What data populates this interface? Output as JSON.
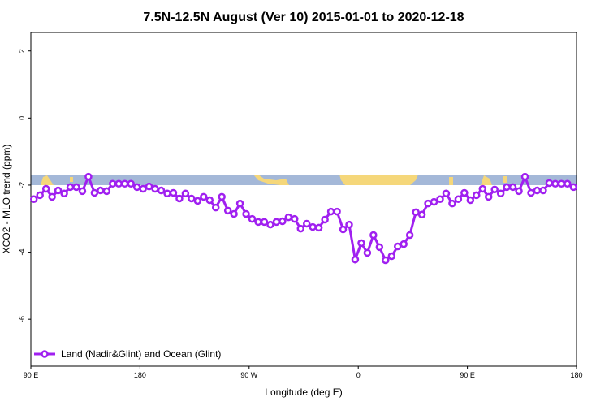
{
  "chart_data": {
    "type": "line",
    "title": "7.5N-12.5N August (Ver 10)   2015-01-01 to 2020-12-18",
    "x_label": "Longitude (deg E)",
    "y_label": "XCO2 - MLO trend (ppm)",
    "xlim": [
      90,
      540
    ],
    "xticks": [
      {
        "value": 90,
        "label": "90 E"
      },
      {
        "value": 180,
        "label": "180"
      },
      {
        "value": 270,
        "label": "90 W"
      },
      {
        "value": 360,
        "label": "0"
      },
      {
        "value": 450,
        "label": "90 E"
      },
      {
        "value": 540,
        "label": "180"
      }
    ],
    "ylim": [
      -7.4,
      2.55
    ],
    "yticks": [
      2,
      0,
      -2,
      -4,
      -6
    ],
    "x": [
      92.5,
      97.5,
      102.5,
      107.5,
      112.5,
      117.5,
      122.5,
      127.5,
      132.5,
      137.5,
      142.5,
      147.5,
      152.5,
      157.5,
      162.5,
      167.5,
      172.5,
      177.5,
      182.5,
      187.5,
      192.5,
      197.5,
      202.5,
      207.5,
      212.5,
      217.5,
      222.5,
      227.5,
      232.5,
      237.5,
      242.5,
      247.5,
      252.5,
      257.5,
      262.5,
      267.5,
      272.5,
      277.5,
      282.5,
      287.5,
      292.5,
      297.5,
      302.5,
      307.5,
      312.5,
      317.5,
      322.5,
      327.5,
      332.5,
      337.5,
      342.5,
      347.5,
      352.5,
      357.5,
      362.5,
      367.5,
      372.5,
      377.5,
      382.5,
      387.5,
      392.5,
      397.5,
      402.5,
      407.5,
      412.5,
      417.5,
      422.5,
      427.5,
      432.5,
      437.5,
      442.5,
      447.5,
      452.5,
      457.5,
      462.5,
      467.5,
      472.5,
      477.5,
      482.5,
      487.5,
      492.5,
      497.5,
      502.5,
      507.5,
      512.5,
      517.5,
      522.5,
      527.5,
      532.5,
      537.5
    ],
    "series": [
      {
        "name": "Land (Nadir&Glint) and Ocean (Glint)",
        "color": "#a020f0",
        "values": [
          -2.42,
          -2.3,
          -2.11,
          -2.35,
          -2.16,
          -2.25,
          -2.06,
          -2.06,
          -2.18,
          -1.75,
          -2.23,
          -2.16,
          -2.18,
          -1.96,
          -1.96,
          -1.96,
          -1.96,
          -2.06,
          -2.11,
          -2.04,
          -2.11,
          -2.16,
          -2.25,
          -2.23,
          -2.4,
          -2.25,
          -2.4,
          -2.47,
          -2.35,
          -2.45,
          -2.67,
          -2.35,
          -2.76,
          -2.86,
          -2.55,
          -2.86,
          -3.01,
          -3.1,
          -3.1,
          -3.18,
          -3.1,
          -3.08,
          -2.96,
          -3.01,
          -3.3,
          -3.15,
          -3.25,
          -3.27,
          -3.03,
          -2.79,
          -2.79,
          -3.32,
          -3.18,
          -4.22,
          -3.73,
          -4.02,
          -3.49,
          -3.85,
          -4.24,
          -4.12,
          -3.83,
          -3.76,
          -3.49,
          -2.81,
          -2.88,
          -2.55,
          -2.5,
          -2.42,
          -2.25,
          -2.55,
          -2.42,
          -2.23,
          -2.45,
          -2.3,
          -2.11,
          -2.35,
          -2.13,
          -2.25,
          -2.06,
          -2.06,
          -2.18,
          -1.75,
          -2.23,
          -2.16,
          -2.16,
          -1.94,
          -1.96,
          -1.96,
          -1.96,
          -2.06
        ]
      }
    ],
    "legend": "bottom-left"
  }
}
